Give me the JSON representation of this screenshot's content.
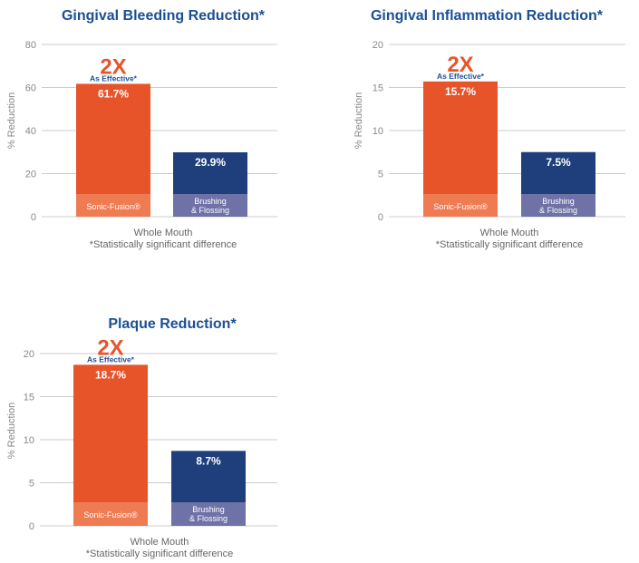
{
  "colors": {
    "primary_bar": "#e8542a",
    "primary_base": "#ee7b52",
    "secondary_bar": "#1f3f7c",
    "secondary_base": "#6e72a7",
    "title": "#1b4f94",
    "badge_big": "#e8542a",
    "badge_small": "#1b4f94",
    "axis_text": "#888888",
    "grid": "#cccccc",
    "xlabel": "#666666"
  },
  "chart_data": [
    {
      "type": "bar",
      "title": "Gingival Bleeding Reduction*",
      "ylabel": "% Reduction",
      "xlabel": "Whole Mouth",
      "note": "*Statistically significant difference",
      "ylim": [
        0,
        80
      ],
      "yticks": [
        0,
        20,
        40,
        60,
        80
      ],
      "categories": [
        "Sonic-Fusion®",
        "Brushing & Flossing"
      ],
      "values": [
        61.7,
        29.9
      ],
      "value_labels": [
        "61.7%",
        "29.9%"
      ],
      "badge": {
        "big": "2X",
        "small": "As Effective*"
      },
      "grid": true
    },
    {
      "type": "bar",
      "title": "Gingival Inflammation Reduction*",
      "ylabel": "% Reduction",
      "xlabel": "Whole Mouth",
      "note": "*Statistically significant difference",
      "ylim": [
        0,
        20
      ],
      "yticks": [
        0,
        5,
        10,
        15,
        20
      ],
      "categories": [
        "Sonic-Fusion®",
        "Brushing & Flossing"
      ],
      "values": [
        15.7,
        7.5
      ],
      "value_labels": [
        "15.7%",
        "7.5%"
      ],
      "badge": {
        "big": "2X",
        "small": "As Effective*"
      },
      "grid": true
    },
    {
      "type": "bar",
      "title": "Plaque Reduction*",
      "ylabel": "% Reduction",
      "xlabel": "Whole Mouth",
      "note": "*Statistically significant difference",
      "ylim": [
        0,
        20
      ],
      "yticks": [
        0,
        5,
        10,
        15,
        20
      ],
      "categories": [
        "Sonic-Fusion®",
        "Brushing & Flossing"
      ],
      "values": [
        18.7,
        8.7
      ],
      "value_labels": [
        "18.7%",
        "8.7%"
      ],
      "badge": {
        "big": "2X",
        "small": "As Effective*"
      },
      "grid": true
    }
  ]
}
